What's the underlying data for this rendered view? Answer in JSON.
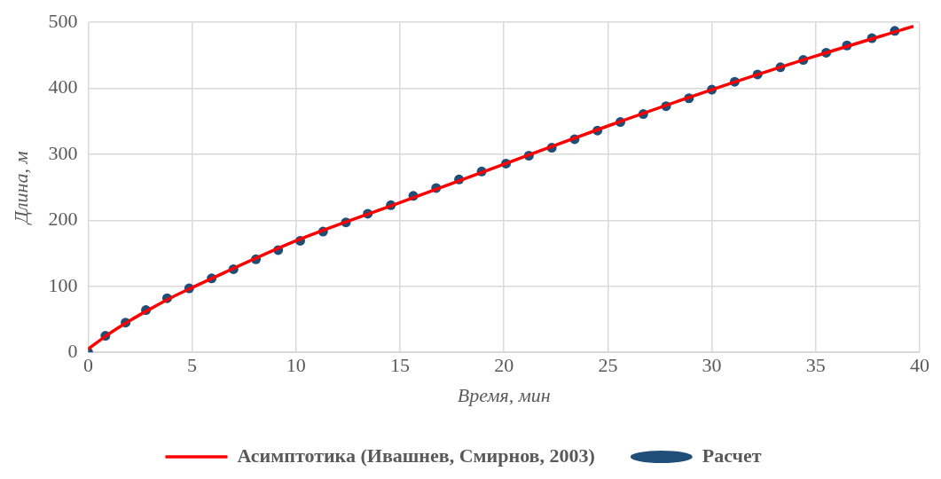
{
  "chart_data": {
    "type": "line",
    "xlabel": "Время, мин",
    "ylabel": "Длина, м",
    "xlim": [
      0,
      40
    ],
    "xticks": [
      0,
      5,
      10,
      15,
      20,
      25,
      30,
      35,
      40
    ],
    "ylim": [
      0,
      500
    ],
    "yticks": [
      0,
      100,
      200,
      300,
      400,
      500
    ],
    "grid": true,
    "legend": "bottom",
    "series": [
      {
        "name": "Асимптотика (Ивашнев, Смирнов, 2003)",
        "type": "line",
        "color": "#ff0000",
        "marker": "none",
        "line_style": "solid",
        "x": [
          0,
          1,
          2,
          3,
          4,
          5,
          10,
          15,
          20,
          25,
          30,
          35,
          39.7
        ],
        "values": [
          5,
          28,
          48,
          66,
          83,
          98,
          169,
          227,
          285,
          343,
          398,
          449,
          494
        ]
      },
      {
        "name": "Расчет",
        "type": "scatter",
        "color": "#1f4e79",
        "marker": "circle",
        "x": [
          0,
          0.83,
          1.8,
          2.78,
          3.8,
          4.86,
          5.94,
          6.99,
          8.07,
          9.14,
          10.2,
          11.3,
          12.4,
          13.45,
          14.56,
          15.64,
          16.74,
          17.84,
          18.93,
          20.1,
          21.2,
          22.3,
          23.4,
          24.5,
          25.6,
          26.7,
          27.8,
          28.9,
          30,
          31.1,
          32.2,
          33.3,
          34.4,
          35.5,
          36.5,
          37.7,
          38.8
        ],
        "values": [
          0,
          25,
          45,
          64,
          82,
          97,
          112,
          126,
          141,
          155,
          169,
          183,
          197,
          210,
          223,
          237,
          249,
          262,
          274,
          286,
          298,
          310,
          323,
          336,
          349,
          361,
          373,
          385,
          398,
          410,
          421,
          432,
          443,
          454,
          465,
          476,
          487
        ]
      }
    ]
  }
}
